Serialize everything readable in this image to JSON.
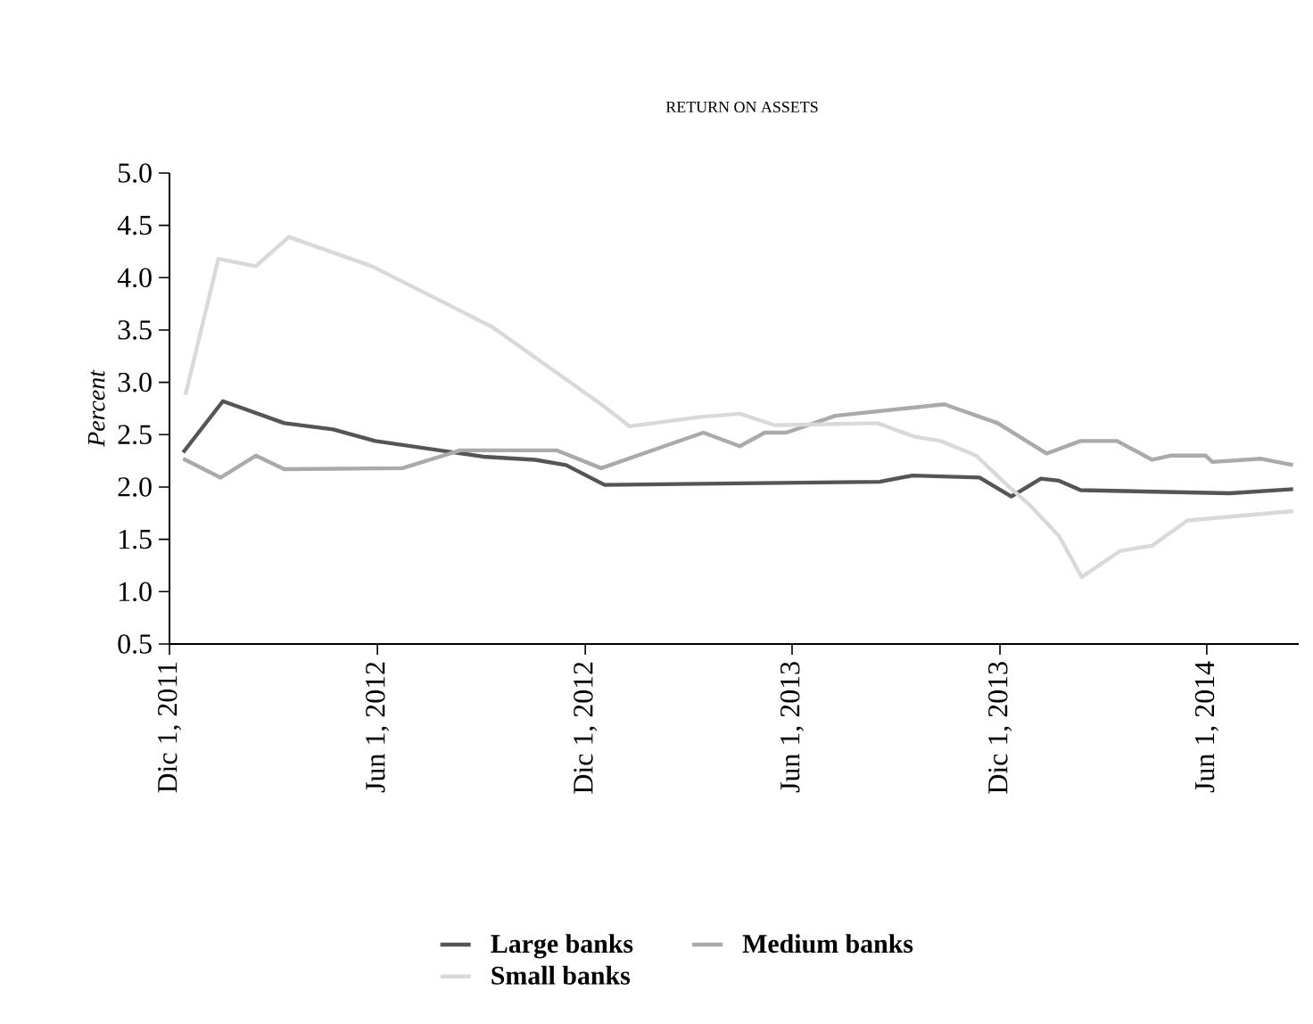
{
  "chart_data": {
    "type": "line",
    "title": "RETURN ON ASSETS",
    "ylabel": "Percent",
    "xlim": [
      "2011-12-01",
      "2014-08-21"
    ],
    "ylim": [
      0.5,
      5.0
    ],
    "xticks": [
      {
        "value": "2011-12-01",
        "label": "Dic 1, 2011"
      },
      {
        "value": "2012-06-01",
        "label": "Jun 1, 2012"
      },
      {
        "value": "2012-12-01",
        "label": "Dic 1, 2012"
      },
      {
        "value": "2013-06-01",
        "label": "Jun 1, 2013"
      },
      {
        "value": "2013-12-01",
        "label": "Dic 1, 2013"
      },
      {
        "value": "2014-06-01",
        "label": "Jun 1, 2014"
      }
    ],
    "yticks": [
      0.5,
      {
        "value": 1,
        "label": "1.0"
      },
      1.5,
      {
        "value": 2,
        "label": "2.0"
      },
      2.5,
      {
        "value": 3,
        "label": "3.0"
      },
      3.5,
      {
        "value": 4,
        "label": "4.0"
      },
      4.5,
      {
        "value": 5,
        "label": "5.0"
      }
    ],
    "grid": false,
    "legend": "bottom",
    "marker": "none",
    "line_style": "solid",
    "series": [
      {
        "name": "Large banks",
        "color": "#555555",
        "x": [
          "2011-12-13",
          "2012-01-17",
          "2012-03-11",
          "2012-04-23",
          "2012-05-30",
          "2012-09-02",
          "2012-10-18",
          "2012-11-14",
          "2012-12-18",
          "2013-08-17",
          "2013-09-15",
          "2013-11-13",
          "2013-12-11",
          "2014-01-06",
          "2014-01-22",
          "2014-02-10",
          "2014-06-21",
          "2014-08-16"
        ],
        "values": [
          2.33,
          2.82,
          2.61,
          2.55,
          2.44,
          2.29,
          2.26,
          2.21,
          2.02,
          2.05,
          2.11,
          2.09,
          1.91,
          2.08,
          2.06,
          1.97,
          1.94,
          1.98
        ]
      },
      {
        "name": "Medium banks",
        "color": "#aaaaaa",
        "x": [
          "2011-12-13",
          "2012-01-15",
          "2012-02-15",
          "2012-03-11",
          "2012-06-23",
          "2012-08-13",
          "2012-11-06",
          "2012-12-15",
          "2013-03-15",
          "2013-04-16",
          "2013-05-08",
          "2013-05-27",
          "2013-07-09",
          "2013-10-13",
          "2013-11-29",
          "2014-01-11",
          "2014-02-10",
          "2014-03-14",
          "2014-04-14",
          "2014-04-30",
          "2014-05-31",
          "2014-06-06",
          "2014-07-19",
          "2014-08-16"
        ],
        "values": [
          2.27,
          2.09,
          2.3,
          2.17,
          2.18,
          2.35,
          2.35,
          2.18,
          2.52,
          2.39,
          2.52,
          2.52,
          2.68,
          2.79,
          2.61,
          2.32,
          2.44,
          2.44,
          2.26,
          2.3,
          2.3,
          2.24,
          2.27,
          2.21
        ]
      },
      {
        "name": "Small banks",
        "color": "#d9d9d9",
        "x": [
          "2011-12-15",
          "2012-01-13",
          "2012-02-15",
          "2012-03-15",
          "2012-05-27",
          "2012-09-10",
          "2012-12-15",
          "2013-01-09",
          "2013-03-13",
          "2013-04-16",
          "2013-05-17",
          "2013-08-15",
          "2013-09-17",
          "2013-10-10",
          "2013-11-10",
          "2013-12-06",
          "2013-12-27",
          "2014-01-22",
          "2014-02-11",
          "2014-03-17",
          "2014-04-14",
          "2014-05-15",
          "2014-08-16"
        ],
        "values": [
          2.88,
          4.18,
          4.11,
          4.39,
          4.11,
          3.53,
          2.79,
          2.58,
          2.67,
          2.7,
          2.59,
          2.61,
          2.48,
          2.44,
          2.3,
          2.03,
          1.83,
          1.53,
          1.14,
          1.39,
          1.44,
          1.68,
          1.77
        ]
      }
    ]
  }
}
